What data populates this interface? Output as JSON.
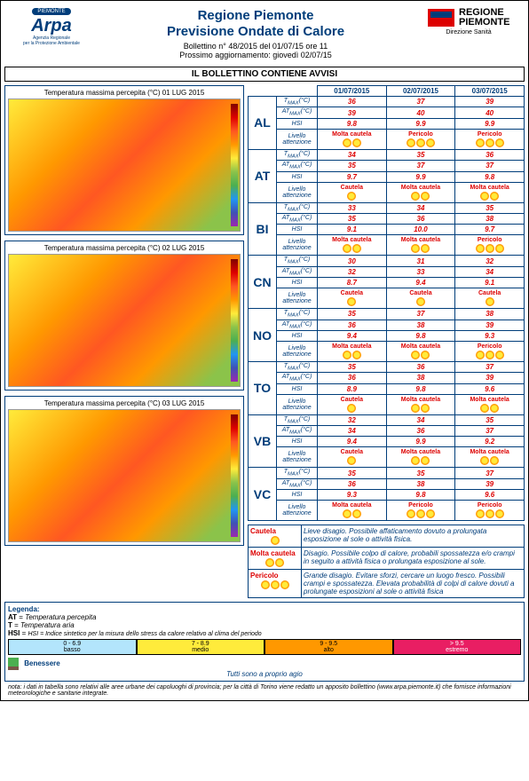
{
  "header": {
    "arpa_badge": "PIEMONTE",
    "arpa_main": "Arpa",
    "arpa_sub": "Agenzia Regionale\nper la Protezione Ambientale",
    "title1": "Regione Piemonte",
    "title2": "Previsione Ondate di Calore",
    "bulletin": "Bollettino n° 48/2015 del 01/07/15 ore 11",
    "update": "Prossimo aggiornamento: giovedì 02/07/15",
    "regione1": "REGIONE",
    "regione2": "PIEMONTE",
    "regione_sub": "Direzione Sanità"
  },
  "warning": "IL BOLLETTINO CONTIENE AVVISI",
  "maps": [
    {
      "title": "Temperatura massima percepita (°C) 01 LUG 2015"
    },
    {
      "title": "Temperatura massima percepita (°C) 02 LUG 2015"
    },
    {
      "title": "Temperatura massima percepita (°C) 03 LUG 2015"
    }
  ],
  "dates": [
    "01/07/2015",
    "02/07/2015",
    "03/07/2015"
  ],
  "metrics": {
    "tmax": "T<sub>MAX</sub> (°C)",
    "atmax": "AT<sub>MAX</sub> (°C)",
    "hsi": "HSI",
    "level": "Livello attenzione"
  },
  "provinces": [
    {
      "code": "AL",
      "tmax": [
        "36",
        "37",
        "39"
      ],
      "atmax": [
        "39",
        "40",
        "40"
      ],
      "hsi": [
        "9.8",
        "9.9",
        "9.9"
      ],
      "levels": [
        {
          "n": "Molta cautela",
          "s": 2
        },
        {
          "n": "Pericolo",
          "s": 3
        },
        {
          "n": "Pericolo",
          "s": 3
        }
      ]
    },
    {
      "code": "AT",
      "tmax": [
        "34",
        "35",
        "36"
      ],
      "atmax": [
        "35",
        "37",
        "37"
      ],
      "hsi": [
        "9.7",
        "9.9",
        "9.8"
      ],
      "levels": [
        {
          "n": "Cautela",
          "s": 1
        },
        {
          "n": "Molta cautela",
          "s": 2
        },
        {
          "n": "Molta cautela",
          "s": 2
        }
      ]
    },
    {
      "code": "BI",
      "tmax": [
        "33",
        "34",
        "35"
      ],
      "atmax": [
        "35",
        "36",
        "38"
      ],
      "hsi": [
        "9.1",
        "10.0",
        "9.7"
      ],
      "levels": [
        {
          "n": "Molta cautela",
          "s": 2
        },
        {
          "n": "Molta cautela",
          "s": 2
        },
        {
          "n": "Pericolo",
          "s": 3
        }
      ]
    },
    {
      "code": "CN",
      "tmax": [
        "30",
        "31",
        "32"
      ],
      "atmax": [
        "32",
        "33",
        "34"
      ],
      "hsi": [
        "8.7",
        "9.4",
        "9.1"
      ],
      "levels": [
        {
          "n": "Cautela",
          "s": 1
        },
        {
          "n": "Cautela",
          "s": 1
        },
        {
          "n": "Cautela",
          "s": 1
        }
      ]
    },
    {
      "code": "NO",
      "tmax": [
        "35",
        "37",
        "38"
      ],
      "atmax": [
        "36",
        "38",
        "39"
      ],
      "hsi": [
        "9.4",
        "9.8",
        "9.3"
      ],
      "levels": [
        {
          "n": "Molta cautela",
          "s": 2
        },
        {
          "n": "Molta cautela",
          "s": 2
        },
        {
          "n": "Pericolo",
          "s": 3
        }
      ]
    },
    {
      "code": "TO",
      "tmax": [
        "35",
        "36",
        "37"
      ],
      "atmax": [
        "36",
        "38",
        "39"
      ],
      "hsi": [
        "8.9",
        "9.8",
        "9.6"
      ],
      "levels": [
        {
          "n": "Cautela",
          "s": 1
        },
        {
          "n": "Molta cautela",
          "s": 2
        },
        {
          "n": "Molta cautela",
          "s": 2
        }
      ]
    },
    {
      "code": "VB",
      "tmax": [
        "32",
        "34",
        "35"
      ],
      "atmax": [
        "34",
        "36",
        "37"
      ],
      "hsi": [
        "9.4",
        "9.9",
        "9.2"
      ],
      "levels": [
        {
          "n": "Cautela",
          "s": 1
        },
        {
          "n": "Molta cautela",
          "s": 2
        },
        {
          "n": "Molta cautela",
          "s": 2
        }
      ]
    },
    {
      "code": "VC",
      "tmax": [
        "35",
        "35",
        "37"
      ],
      "atmax": [
        "36",
        "38",
        "39"
      ],
      "hsi": [
        "9.3",
        "9.8",
        "9.6"
      ],
      "levels": [
        {
          "n": "Molta cautela",
          "s": 2
        },
        {
          "n": "Pericolo",
          "s": 3
        },
        {
          "n": "Pericolo",
          "s": 3
        }
      ]
    }
  ],
  "legend": {
    "title": "Legenda:",
    "at": "AT = Temperatura percepita",
    "t": "T = Temperatura aria",
    "hsi": "HSI = Indice sintetico per la misura dello stress da calore relativo al clima del periodo",
    "scale": [
      {
        "range": "0 - 6.9",
        "label": "basso"
      },
      {
        "range": "7 - 8.9",
        "label": "medio"
      },
      {
        "range": "9 - 9.5",
        "label": "alto"
      },
      {
        "range": "> 9.5",
        "label": "estremo"
      }
    ],
    "benessere": "Benessere",
    "benessere_text": "Tutti sono a proprio agio"
  },
  "levels_legend": [
    {
      "name": "Cautela",
      "suns": 1,
      "text": "Lieve disagio. Possibile affaticamento dovuto a prolungata esposizione al sole o attività fisica."
    },
    {
      "name": "Molta cautela",
      "suns": 2,
      "text": "Disagio. Possibile colpo di calore, probabili spossatezza e/o crampi in seguito a attività fisica o prolungata esposizione al sole."
    },
    {
      "name": "Pericolo",
      "suns": 3,
      "text": "Grande disagio. Evitare sforzi, cercare un luogo fresco. Possibili crampi e spossatezza. Elevata probabilità di colpi di calore dovuti a prolungate esposizioni al sole o attività fisica"
    }
  ],
  "note": "nota: i dati in tabella sono relativi alle aree urbane dei capoluoghi di provincia; per la città di Torino viene redatto un apposito bollettino (www.arpa.piemonte.it) che fornisce informazioni meteorologiche e sanitarie integrate."
}
